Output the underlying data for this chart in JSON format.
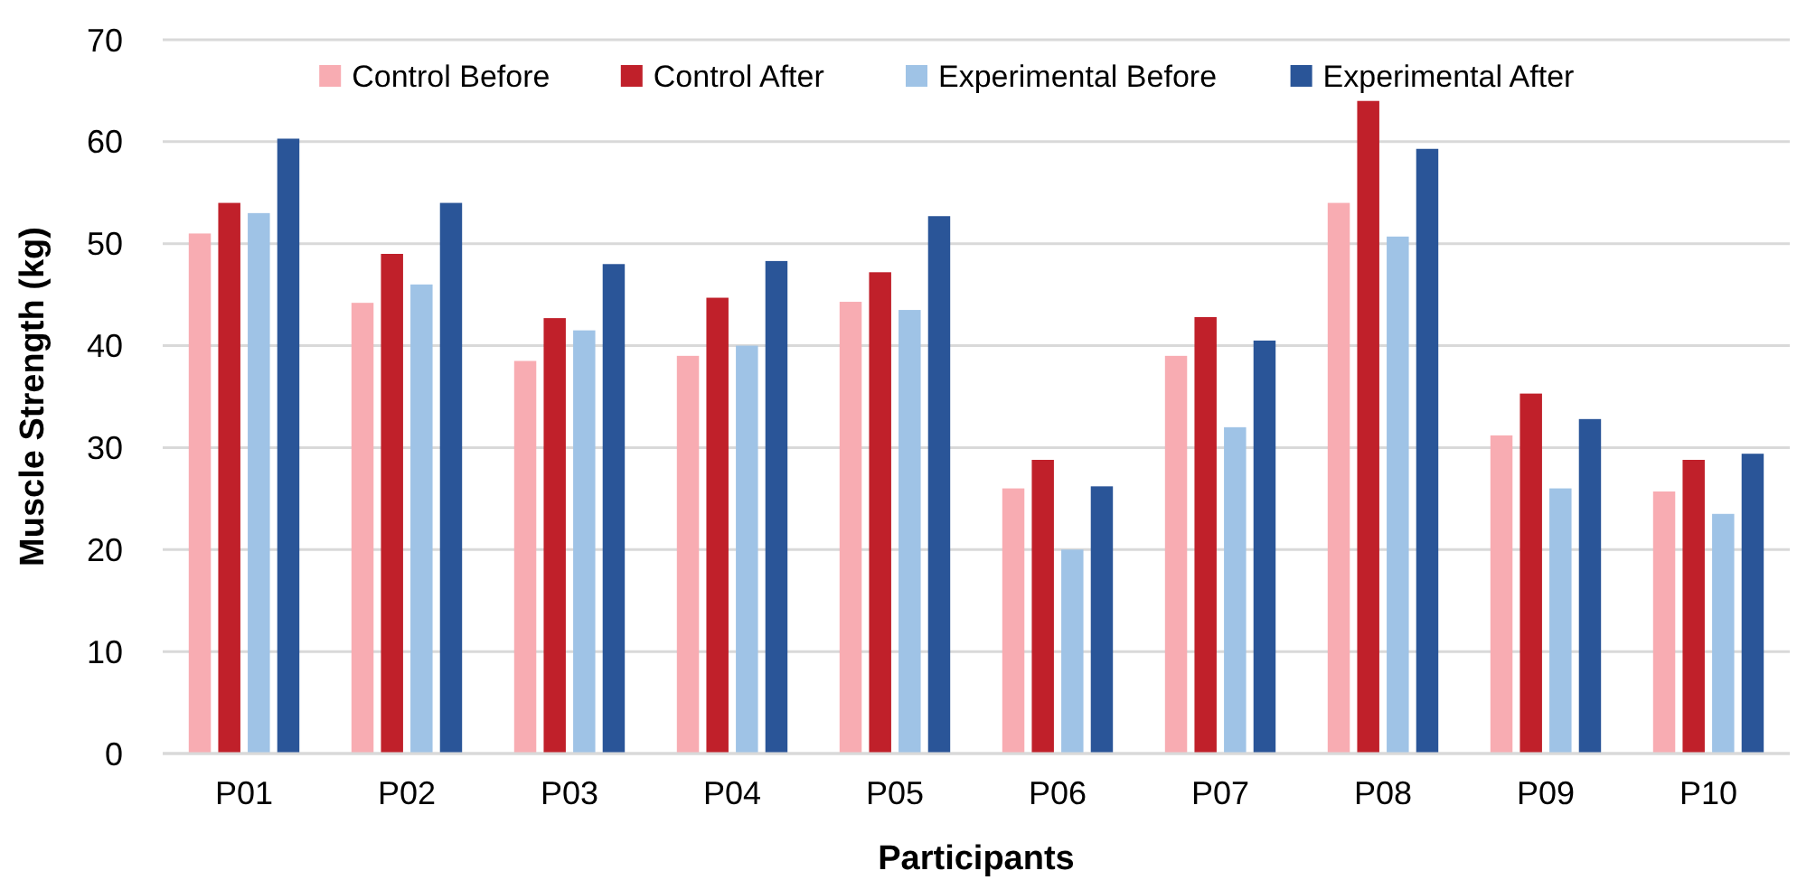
{
  "chart_data": {
    "type": "bar",
    "xlabel": "Participants",
    "ylabel": "Muscle Strength (kg)",
    "categories": [
      "P01",
      "P02",
      "P03",
      "P04",
      "P05",
      "P06",
      "P07",
      "P08",
      "P09",
      "P10"
    ],
    "series": [
      {
        "name": "Control Before",
        "color": "#f8acb2",
        "values": [
          51,
          44.2,
          38.5,
          39,
          44.3,
          26,
          39,
          54,
          31.2,
          25.7
        ]
      },
      {
        "name": "Control After",
        "color": "#c0202a",
        "values": [
          54,
          49,
          42.7,
          44.7,
          47.2,
          28.8,
          42.8,
          64,
          35.3,
          28.8
        ]
      },
      {
        "name": "Experimental Before",
        "color": "#9fc3e6",
        "values": [
          53,
          46,
          41.5,
          40,
          43.5,
          20,
          32,
          50.7,
          26,
          23.5
        ]
      },
      {
        "name": "Experimental After",
        "color": "#2a5598",
        "values": [
          60.3,
          54,
          48,
          48.3,
          52.7,
          26.2,
          40.5,
          59.3,
          32.8,
          29.4
        ]
      }
    ],
    "ylim": [
      0,
      70
    ],
    "yticks": [
      0,
      10,
      20,
      30,
      40,
      50,
      60,
      70
    ],
    "grid": "y",
    "legend": "top"
  }
}
